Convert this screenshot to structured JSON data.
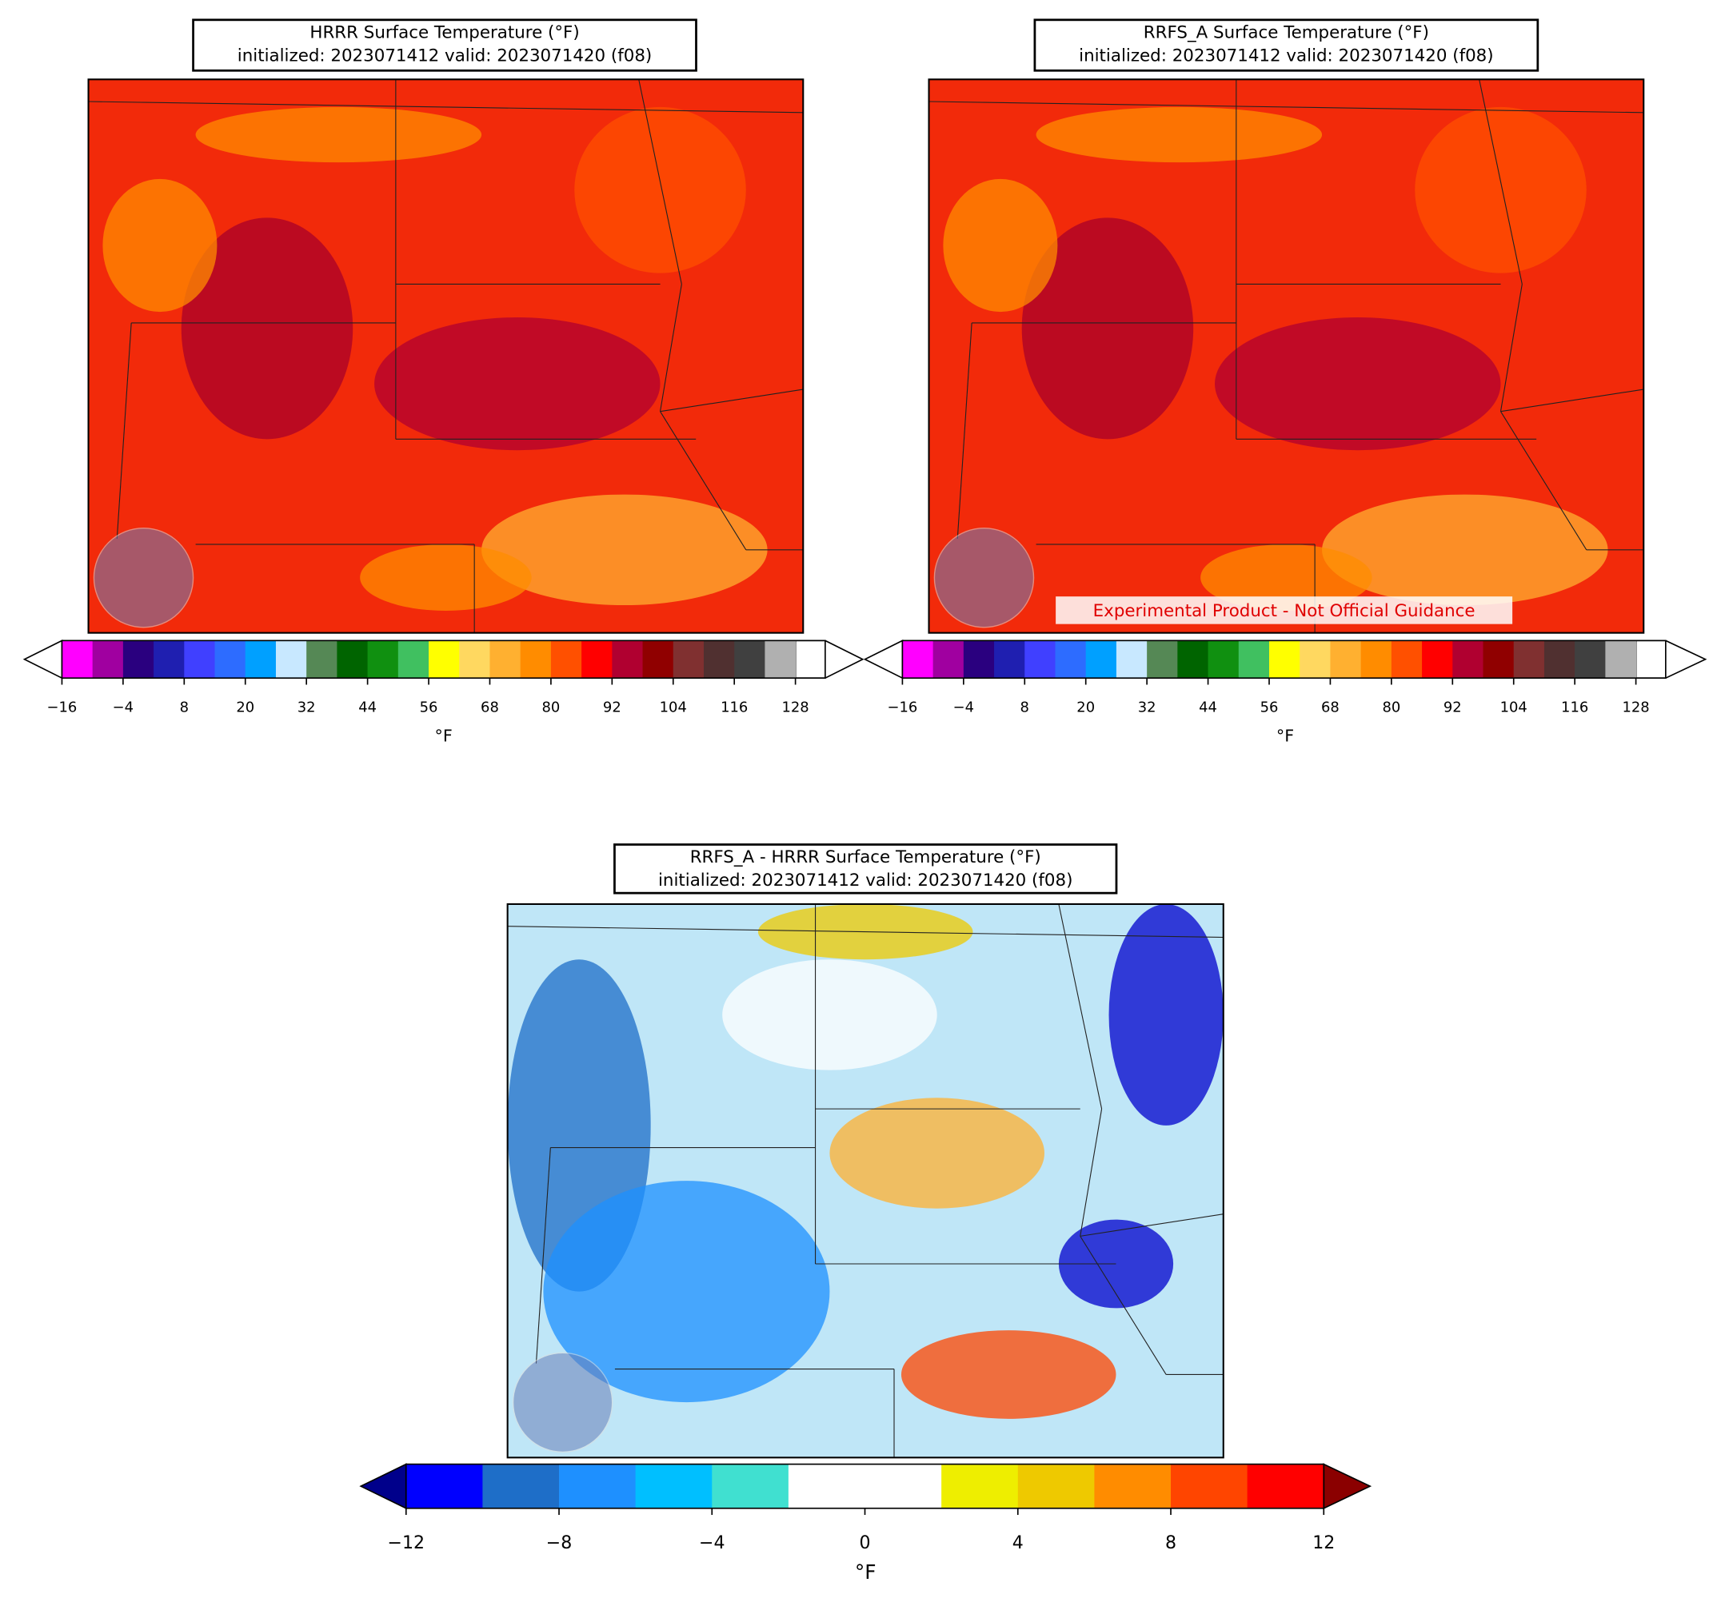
{
  "panels": [
    {
      "title_lines": [
        "HRRR Surface Temperature (°F)",
        "initialized: 2023071412 valid: 2023071420 (f08)"
      ],
      "colorbar": {
        "range": [
          -16,
          128
        ],
        "ticks": [
          {
            "value": -16,
            "label": "−16"
          },
          {
            "value": -4,
            "label": "−4"
          },
          8,
          20,
          32,
          44,
          56,
          68,
          80,
          92,
          104,
          116,
          128
        ],
        "colors": [
          "#ff00ff",
          "#a000a0",
          "#2a007f",
          "#1f1fb0",
          "#4040ff",
          "#2d6cff",
          "#00a0ff",
          "#c8e8ff",
          "#558855",
          "#006400",
          "#109010",
          "#40c060",
          "#ffff00",
          "#ffd860",
          "#ffb030",
          "#ff8c00",
          "#ff5000",
          "#ff0000",
          "#b00030",
          "#900000",
          "#803030",
          "#503030",
          "#404040",
          "#b0b0b0"
        ],
        "extend_colors": [
          "#ffffff",
          "#ffffff"
        ],
        "label": "°F"
      }
    },
    {
      "title_lines": [
        "RRFS_A Surface Temperature (°F)",
        "initialized: 2023071412 valid: 2023071420 (f08)"
      ],
      "annotation": "Experimental Product - Not Official Guidance",
      "colorbar": {
        "range": [
          -16,
          128
        ],
        "ticks": [
          {
            "value": -16,
            "label": "−16"
          },
          {
            "value": -4,
            "label": "−4"
          },
          8,
          20,
          32,
          44,
          56,
          68,
          80,
          92,
          104,
          116,
          128
        ],
        "colors": [
          "#ff00ff",
          "#a000a0",
          "#2a007f",
          "#1f1fb0",
          "#4040ff",
          "#2d6cff",
          "#00a0ff",
          "#c8e8ff",
          "#558855",
          "#006400",
          "#109010",
          "#40c060",
          "#ffff00",
          "#ffd860",
          "#ffb030",
          "#ff8c00",
          "#ff5000",
          "#ff0000",
          "#b00030",
          "#900000",
          "#803030",
          "#503030",
          "#404040",
          "#b0b0b0"
        ],
        "extend_colors": [
          "#ffffff",
          "#ffffff"
        ],
        "label": "°F"
      }
    },
    {
      "title_lines": [
        "RRFS_A - HRRR Surface Temperature (°F)",
        "initialized: 2023071412 valid: 2023071420 (f08)"
      ],
      "colorbar": {
        "range": [
          -12,
          12
        ],
        "ticks": [
          {
            "value": -12,
            "label": "−12"
          },
          {
            "value": -8,
            "label": "−8"
          },
          {
            "value": -4,
            "label": "−4"
          },
          0,
          4,
          8,
          12
        ],
        "colors": [
          "#0000ff",
          "#1e6ec8",
          "#1e90ff",
          "#00bfff",
          "#40e0d0",
          "#ffffff",
          "#ffffff",
          "#eeee00",
          "#eec900",
          "#ff8c00",
          "#ff4500",
          "#ff0000"
        ],
        "extend_colors": [
          "#00008b",
          "#8b0000"
        ],
        "label": "°F"
      }
    }
  ]
}
